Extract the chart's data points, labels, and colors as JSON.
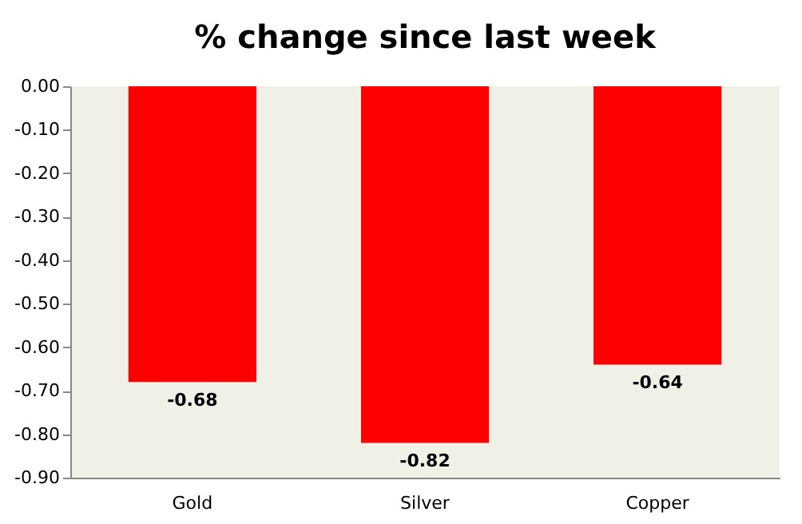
{
  "chart_data": {
    "type": "bar",
    "title": "% change since last week",
    "categories": [
      "Gold",
      "Silver",
      "Copper"
    ],
    "values": [
      -0.68,
      -0.82,
      -0.64
    ],
    "color": "#ff0000",
    "ylim": [
      -0.9,
      0
    ],
    "yticks": [
      {
        "value": 0,
        "label": "0.00"
      },
      {
        "value": -0.1,
        "label": "-0.10"
      },
      {
        "value": -0.2,
        "label": "-0.20"
      },
      {
        "value": -0.3,
        "label": "-0.30"
      },
      {
        "value": -0.4,
        "label": "-0.40"
      },
      {
        "value": -0.5,
        "label": "-0.50"
      },
      {
        "value": -0.6,
        "label": "-0.60"
      },
      {
        "value": -0.7,
        "label": "-0.70"
      },
      {
        "value": -0.8,
        "label": "-0.80"
      },
      {
        "value": -0.9,
        "label": "-0.90"
      }
    ],
    "data_labels": true,
    "grid": false
  }
}
